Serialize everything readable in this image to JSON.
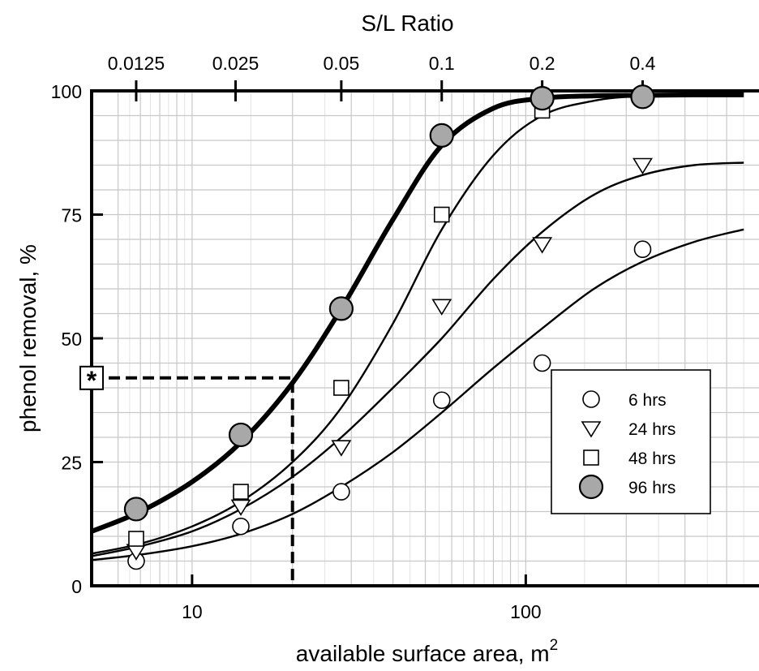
{
  "chart_data": {
    "type": "scatter",
    "x_axis": {
      "label": "available surface area, m",
      "label_superscript": "2",
      "scale": "log",
      "range": [
        5,
        500
      ],
      "ticks": [
        10,
        100
      ],
      "tick_labels": [
        "10",
        "100"
      ]
    },
    "y_axis": {
      "label": "phenol removal, %",
      "range": [
        0,
        100
      ],
      "ticks": [
        0,
        25,
        50,
        75,
        100
      ],
      "tick_labels": [
        "0",
        "25",
        "50",
        "75",
        "100"
      ]
    },
    "top_axis": {
      "label": "S/L Ratio",
      "ticks": [
        0.0125,
        0.025,
        0.05,
        0.1,
        0.2,
        0.4
      ],
      "tick_labels": [
        "0.0125",
        "0.025",
        "0.05",
        "0.1",
        "0.2",
        "0.4"
      ],
      "tick_positions_x": [
        6.8,
        13.5,
        28,
        56,
        112,
        224
      ]
    },
    "grid": true,
    "legend": {
      "position": "right-center"
    },
    "series": [
      {
        "name": "6 hrs",
        "marker": "open-circle",
        "points": [
          [
            6.8,
            5
          ],
          [
            14,
            12
          ],
          [
            28,
            19
          ],
          [
            56,
            37.5
          ],
          [
            112,
            45
          ],
          [
            224,
            68
          ]
        ],
        "fit_curve": [
          [
            5,
            5.2
          ],
          [
            7,
            6.3
          ],
          [
            10,
            8
          ],
          [
            14,
            10.5
          ],
          [
            20,
            14.5
          ],
          [
            28,
            20
          ],
          [
            40,
            27
          ],
          [
            56,
            35
          ],
          [
            80,
            44
          ],
          [
            112,
            52
          ],
          [
            160,
            60
          ],
          [
            224,
            65.5
          ],
          [
            320,
            69.5
          ],
          [
            450,
            72
          ]
        ]
      },
      {
        "name": "24 hrs",
        "marker": "open-triangle",
        "points": [
          [
            6.8,
            7
          ],
          [
            14,
            16
          ],
          [
            28,
            28
          ],
          [
            56,
            56.5
          ],
          [
            112,
            69
          ],
          [
            224,
            85
          ]
        ],
        "fit_curve": [
          [
            5,
            6
          ],
          [
            7,
            8
          ],
          [
            10,
            11
          ],
          [
            14,
            15.5
          ],
          [
            20,
            22
          ],
          [
            28,
            30
          ],
          [
            40,
            40
          ],
          [
            56,
            50
          ],
          [
            80,
            62
          ],
          [
            112,
            71.5
          ],
          [
            160,
            79
          ],
          [
            224,
            83
          ],
          [
            320,
            85
          ],
          [
            450,
            85.5
          ]
        ]
      },
      {
        "name": "48 hrs",
        "marker": "open-square",
        "points": [
          [
            6.8,
            9.5
          ],
          [
            14,
            19
          ],
          [
            28,
            40
          ],
          [
            56,
            75
          ],
          [
            112,
            96
          ],
          [
            224,
            98.5
          ]
        ],
        "fit_curve": [
          [
            5,
            6.5
          ],
          [
            7,
            8.5
          ],
          [
            10,
            12
          ],
          [
            14,
            17
          ],
          [
            20,
            25
          ],
          [
            28,
            36
          ],
          [
            40,
            53
          ],
          [
            56,
            72
          ],
          [
            80,
            87
          ],
          [
            112,
            95
          ],
          [
            160,
            98
          ],
          [
            224,
            99
          ],
          [
            320,
            99.3
          ],
          [
            450,
            99.5
          ]
        ]
      },
      {
        "name": "96 hrs",
        "marker": "filled-circle",
        "points": [
          [
            6.8,
            15.5
          ],
          [
            14,
            30.5
          ],
          [
            28,
            56
          ],
          [
            56,
            91
          ],
          [
            112,
            98.5
          ],
          [
            224,
            98.8
          ]
        ],
        "fit_curve": [
          [
            5,
            11
          ],
          [
            7,
            15
          ],
          [
            10,
            21
          ],
          [
            14,
            29
          ],
          [
            20,
            41
          ],
          [
            28,
            56
          ],
          [
            40,
            74
          ],
          [
            56,
            89
          ],
          [
            80,
            96.5
          ],
          [
            112,
            98.5
          ],
          [
            160,
            99
          ],
          [
            224,
            99.1
          ],
          [
            320,
            99.2
          ],
          [
            450,
            99.2
          ]
        ]
      }
    ],
    "reference_lines": [
      {
        "style": "dashed",
        "points": [
          [
            5,
            42
          ],
          [
            20,
            42
          ],
          [
            20,
            0
          ]
        ]
      }
    ],
    "annotation_marker": {
      "symbol": "*",
      "x": 5,
      "y": 42
    }
  }
}
